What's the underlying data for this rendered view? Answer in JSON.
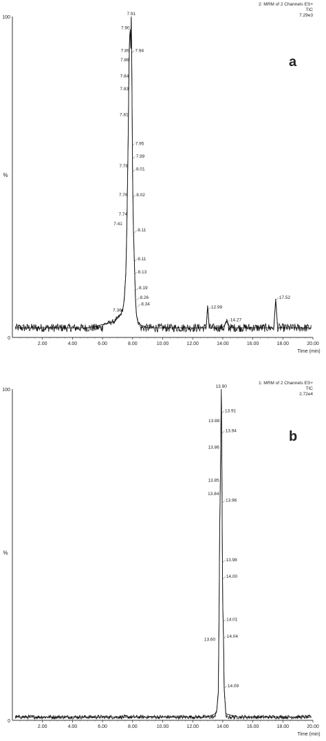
{
  "chart_data": [
    {
      "type": "line",
      "panel_label": "a",
      "header": [
        "2: MRM of 2 Channels ES+",
        "TIC",
        "7.29e3"
      ],
      "xlabel": "Time (min)",
      "ylabel": "%",
      "xlim": [
        0,
        20
      ],
      "ylim": [
        0,
        100
      ],
      "x_ticks": [
        "2.00",
        "4.00",
        "6.00",
        "8.00",
        "10.00",
        "12.00",
        "14.00",
        "16.00",
        "18.00",
        "20.00"
      ],
      "y_ticks": [
        "0",
        "100"
      ],
      "series": [
        {
          "x": [
            0.2,
            1.0,
            2.0,
            3.0,
            4.0,
            5.0,
            6.0,
            6.8,
            7.2,
            7.36,
            7.45,
            7.55,
            7.62,
            7.7,
            7.76,
            7.8,
            7.84,
            7.88,
            7.91,
            7.94,
            7.97,
            8.0,
            8.05,
            8.11,
            8.19,
            8.26,
            8.34,
            8.5,
            9.0,
            10.0,
            11.0,
            12.0,
            12.9,
            12.99,
            13.1,
            14.0,
            14.27,
            14.5,
            15.5,
            16.5,
            17.4,
            17.52,
            17.65,
            18.5,
            19.5,
            19.9
          ],
          "y": [
            3,
            3,
            3,
            3,
            3,
            3,
            4,
            5,
            7,
            9,
            12,
            20,
            35,
            60,
            85,
            93,
            96,
            90,
            100,
            88,
            70,
            50,
            35,
            25,
            12,
            7,
            5,
            4,
            3,
            3,
            3,
            3,
            3,
            10,
            3,
            3,
            5,
            3,
            3,
            3,
            3,
            12,
            3,
            3,
            3,
            3
          ]
        }
      ],
      "peak_labels": [
        {
          "x": 7.91,
          "y": 100,
          "text": "7.91"
        },
        {
          "x": 7.9,
          "y": 96,
          "text": "7.90"
        },
        {
          "x": 7.89,
          "y": 89,
          "text": "7.89"
        },
        {
          "x": 7.94,
          "y": 89,
          "text": "7.94"
        },
        {
          "x": 7.86,
          "y": 86,
          "text": "7.86"
        },
        {
          "x": 7.84,
          "y": 81,
          "text": "7.84"
        },
        {
          "x": 7.83,
          "y": 77,
          "text": "7.83"
        },
        {
          "x": 7.81,
          "y": 69,
          "text": "7.81"
        },
        {
          "x": 7.95,
          "y": 60,
          "text": "7.95"
        },
        {
          "x": 7.99,
          "y": 56,
          "text": "7.99"
        },
        {
          "x": 7.78,
          "y": 53,
          "text": "7.78"
        },
        {
          "x": 8.01,
          "y": 52,
          "text": "8.01"
        },
        {
          "x": 7.76,
          "y": 44,
          "text": "7.76"
        },
        {
          "x": 8.02,
          "y": 44,
          "text": "8.02"
        },
        {
          "x": 7.74,
          "y": 38,
          "text": "7.74"
        },
        {
          "x": 7.41,
          "y": 35,
          "text": "7.41"
        },
        {
          "x": 8.11,
          "y": 33,
          "text": "8.11"
        },
        {
          "x": 8.11,
          "y": 24,
          "text": "8.11"
        },
        {
          "x": 8.13,
          "y": 20,
          "text": "8.13"
        },
        {
          "x": 8.19,
          "y": 15,
          "text": "8.19"
        },
        {
          "x": 8.26,
          "y": 12,
          "text": "8.26"
        },
        {
          "x": 8.34,
          "y": 10,
          "text": "8.34"
        },
        {
          "x": 7.36,
          "y": 8,
          "text": "7.36"
        },
        {
          "x": 12.99,
          "y": 9,
          "text": "12.99"
        },
        {
          "x": 14.27,
          "y": 5,
          "text": "14.27"
        },
        {
          "x": 17.52,
          "y": 12,
          "text": "17.52"
        }
      ]
    },
    {
      "type": "line",
      "panel_label": "b",
      "header": [
        "1: MRM of 2 Channels ES+",
        "TIC",
        "2.72e4"
      ],
      "xlabel": "Time (min)",
      "ylabel": "%",
      "xlim": [
        0,
        20
      ],
      "ylim": [
        0,
        100
      ],
      "x_ticks": [
        "2.00",
        "4.00",
        "6.00",
        "8.00",
        "10.00",
        "12.00",
        "14.00",
        "16.00",
        "18.00",
        "20.00"
      ],
      "y_ticks": [
        "0",
        "100"
      ],
      "series": [
        {
          "x": [
            0.2,
            2.0,
            4.0,
            6.0,
            8.0,
            10.0,
            12.0,
            13.0,
            13.5,
            13.6,
            13.7,
            13.75,
            13.8,
            13.84,
            13.86,
            13.88,
            13.9,
            13.92,
            13.95,
            13.98,
            14.0,
            14.05,
            14.09,
            14.2,
            15.0,
            16.0,
            18.0,
            19.9
          ],
          "y": [
            1,
            1,
            1,
            1,
            1,
            1,
            1,
            1,
            2,
            3,
            8,
            30,
            60,
            72,
            80,
            90,
            100,
            93,
            70,
            45,
            35,
            25,
            10,
            2,
            1,
            1,
            1,
            1
          ]
        }
      ],
      "peak_labels": [
        {
          "x": 13.9,
          "y": 100,
          "text": "13.90"
        },
        {
          "x": 13.91,
          "y": 93,
          "text": "13.91"
        },
        {
          "x": 13.88,
          "y": 90,
          "text": "13.88"
        },
        {
          "x": 13.94,
          "y": 87,
          "text": "13.94"
        },
        {
          "x": 13.86,
          "y": 82,
          "text": "13.86"
        },
        {
          "x": 13.85,
          "y": 72,
          "text": "13.85"
        },
        {
          "x": 13.84,
          "y": 68,
          "text": "13.84"
        },
        {
          "x": 13.96,
          "y": 66,
          "text": "13.96"
        },
        {
          "x": 13.98,
          "y": 48,
          "text": "13.98"
        },
        {
          "x": 14.0,
          "y": 43,
          "text": "14.00"
        },
        {
          "x": 14.01,
          "y": 30,
          "text": "14.01"
        },
        {
          "x": 13.6,
          "y": 24,
          "text": "13.60"
        },
        {
          "x": 14.04,
          "y": 25,
          "text": "14.04"
        },
        {
          "x": 14.09,
          "y": 10,
          "text": "14.09"
        }
      ]
    }
  ]
}
